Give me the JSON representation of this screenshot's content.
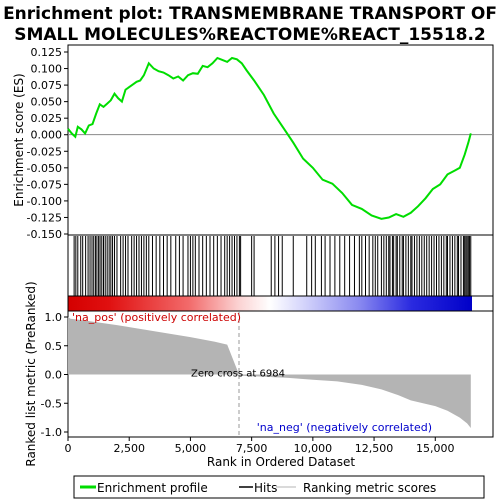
{
  "chart_data": {
    "type": "line",
    "title_line1": "Enrichment plot: TRANSMEMBRANE TRANSPORT OF",
    "title_line2": "SMALL MOLECULES%REACTOME%REACT_15518.2",
    "top_panel": {
      "ylabel": "Enrichment score (ES)",
      "ylim": [
        -0.15,
        0.125
      ],
      "yticks": [
        "0.125",
        "0.100",
        "0.075",
        "0.050",
        "0.025",
        "0.000",
        "-0.025",
        "-0.050",
        "-0.075",
        "-0.100",
        "-0.125",
        "-0.150"
      ],
      "ytick_values": [
        0.125,
        0.1,
        0.075,
        0.05,
        0.025,
        0.0,
        -0.025,
        -0.05,
        -0.075,
        -0.1,
        -0.125,
        -0.15
      ],
      "series_name": "Enrichment profile",
      "line_color": "#00dd00",
      "es_points": [
        [
          0,
          0.009
        ],
        [
          150,
          0.002
        ],
        [
          300,
          -0.003
        ],
        [
          400,
          0.012
        ],
        [
          550,
          0.008
        ],
        [
          700,
          0.002
        ],
        [
          850,
          0.014
        ],
        [
          1000,
          0.016
        ],
        [
          1150,
          0.032
        ],
        [
          1300,
          0.046
        ],
        [
          1450,
          0.042
        ],
        [
          1600,
          0.047
        ],
        [
          1750,
          0.052
        ],
        [
          1900,
          0.062
        ],
        [
          2050,
          0.055
        ],
        [
          2200,
          0.05
        ],
        [
          2350,
          0.068
        ],
        [
          2500,
          0.072
        ],
        [
          2650,
          0.076
        ],
        [
          2800,
          0.08
        ],
        [
          2950,
          0.082
        ],
        [
          3100,
          0.09
        ],
        [
          3300,
          0.108
        ],
        [
          3500,
          0.1
        ],
        [
          3700,
          0.096
        ],
        [
          3900,
          0.094
        ],
        [
          4100,
          0.09
        ],
        [
          4300,
          0.085
        ],
        [
          4500,
          0.088
        ],
        [
          4700,
          0.082
        ],
        [
          4900,
          0.09
        ],
        [
          5100,
          0.093
        ],
        [
          5300,
          0.092
        ],
        [
          5500,
          0.104
        ],
        [
          5700,
          0.102
        ],
        [
          5900,
          0.108
        ],
        [
          6100,
          0.116
        ],
        [
          6300,
          0.113
        ],
        [
          6500,
          0.11
        ],
        [
          6700,
          0.116
        ],
        [
          6900,
          0.114
        ],
        [
          7100,
          0.108
        ],
        [
          7300,
          0.097
        ],
        [
          7600,
          0.082
        ],
        [
          8000,
          0.06
        ],
        [
          8400,
          0.032
        ],
        [
          8800,
          0.01
        ],
        [
          9200,
          -0.012
        ],
        [
          9600,
          -0.036
        ],
        [
          10000,
          -0.05
        ],
        [
          10400,
          -0.068
        ],
        [
          10800,
          -0.074
        ],
        [
          11200,
          -0.088
        ],
        [
          11600,
          -0.106
        ],
        [
          12000,
          -0.112
        ],
        [
          12400,
          -0.122
        ],
        [
          12800,
          -0.127
        ],
        [
          13100,
          -0.125
        ],
        [
          13400,
          -0.12
        ],
        [
          13700,
          -0.124
        ],
        [
          14000,
          -0.118
        ],
        [
          14300,
          -0.108
        ],
        [
          14600,
          -0.096
        ],
        [
          14900,
          -0.082
        ],
        [
          15200,
          -0.075
        ],
        [
          15500,
          -0.06
        ],
        [
          15800,
          -0.054
        ],
        [
          16000,
          -0.05
        ],
        [
          16200,
          -0.03
        ],
        [
          16350,
          -0.012
        ],
        [
          16450,
          0.002
        ]
      ],
      "hit_ranks": [
        250,
        320,
        400,
        520,
        600,
        720,
        820,
        900,
        980,
        1050,
        1120,
        1180,
        1250,
        1310,
        1380,
        1450,
        1520,
        1600,
        1680,
        1750,
        1820,
        1900,
        2000,
        2150,
        2250,
        2350,
        2450,
        2600,
        2700,
        2800,
        2900,
        3000,
        3100,
        3200,
        3300,
        3450,
        3600,
        3750,
        3900,
        4050,
        4200,
        4400,
        4550,
        4700,
        4900,
        5000,
        5100,
        5200,
        5350,
        5500,
        5650,
        5800,
        5950,
        6100,
        6250,
        6400,
        6500,
        6600,
        6700,
        6800,
        6900,
        7000,
        7050,
        7500,
        7600,
        8300,
        8450,
        8600,
        8750,
        9200,
        9750,
        9950,
        10100,
        10350,
        10500,
        10700,
        10900,
        11100,
        11300,
        11500,
        11700,
        11900,
        12000,
        12150,
        12300,
        12450,
        12550,
        12650,
        12800,
        12900,
        13000,
        13100,
        13150,
        13250,
        13300,
        13400,
        13450,
        13550,
        13650,
        13700,
        13800,
        13900,
        14000,
        14050,
        14150,
        14250,
        14350,
        14450,
        14550,
        14650,
        14750,
        14850,
        14950,
        15050,
        15150,
        15250,
        15350,
        15450,
        15500,
        15600,
        15700,
        15800,
        15900,
        15950,
        16050,
        16150,
        16200,
        16250,
        16300,
        16350,
        16400,
        16450
      ]
    },
    "bottom_panel": {
      "ylabel": "Ranked list metric (PreRanked)",
      "ylim": [
        -1.0,
        1.0
      ],
      "yticks": [
        "1.0",
        "0.5",
        "0.0",
        "-0.5",
        "-1.0"
      ],
      "ytick_values": [
        1.0,
        0.5,
        0.0,
        -0.5,
        -1.0
      ],
      "xlabel": "Rank in Ordered Dataset",
      "xlim": [
        0,
        16500
      ],
      "xticks": [
        "0",
        "2,500",
        "5,000",
        "7,500",
        "10,000",
        "12,500",
        "15,000"
      ],
      "xtick_values": [
        0,
        2500,
        5000,
        7500,
        10000,
        12500,
        15000
      ],
      "bar_color": "#b4b4b4",
      "metric_points": [
        [
          0,
          1.0
        ],
        [
          100,
          0.97
        ],
        [
          500,
          0.95
        ],
        [
          1000,
          0.92
        ],
        [
          2000,
          0.86
        ],
        [
          3000,
          0.79
        ],
        [
          4000,
          0.72
        ],
        [
          5000,
          0.65
        ],
        [
          6000,
          0.57
        ],
        [
          6500,
          0.52
        ],
        [
          6984,
          0.0
        ],
        [
          7000,
          -0.02
        ],
        [
          9000,
          -0.06
        ],
        [
          10000,
          -0.09
        ],
        [
          11000,
          -0.12
        ],
        [
          12000,
          -0.18
        ],
        [
          12800,
          -0.26
        ],
        [
          13500,
          -0.36
        ],
        [
          14000,
          -0.45
        ],
        [
          14500,
          -0.5
        ],
        [
          15000,
          -0.55
        ],
        [
          15500,
          -0.63
        ],
        [
          16000,
          -0.75
        ],
        [
          16300,
          -0.85
        ],
        [
          16450,
          -0.93
        ]
      ],
      "zero_cross_rank": 6984,
      "zero_cross_label": "Zero cross at 6984",
      "pos_label": "'na_pos' (positively correlated)",
      "neg_label": "'na_neg' (negatively correlated)",
      "pos_label_color": "#cc0000",
      "neg_label_color": "#0000cc"
    },
    "legend": {
      "placement": "bottom",
      "items": [
        {
          "label": "Enrichment profile",
          "color": "#00dd00",
          "kind": "thick-line"
        },
        {
          "label": "Hits",
          "color": "#000000",
          "kind": "line"
        },
        {
          "label": "Ranking metric scores",
          "color": "#b4b4b4",
          "kind": "thin-line"
        }
      ]
    }
  }
}
